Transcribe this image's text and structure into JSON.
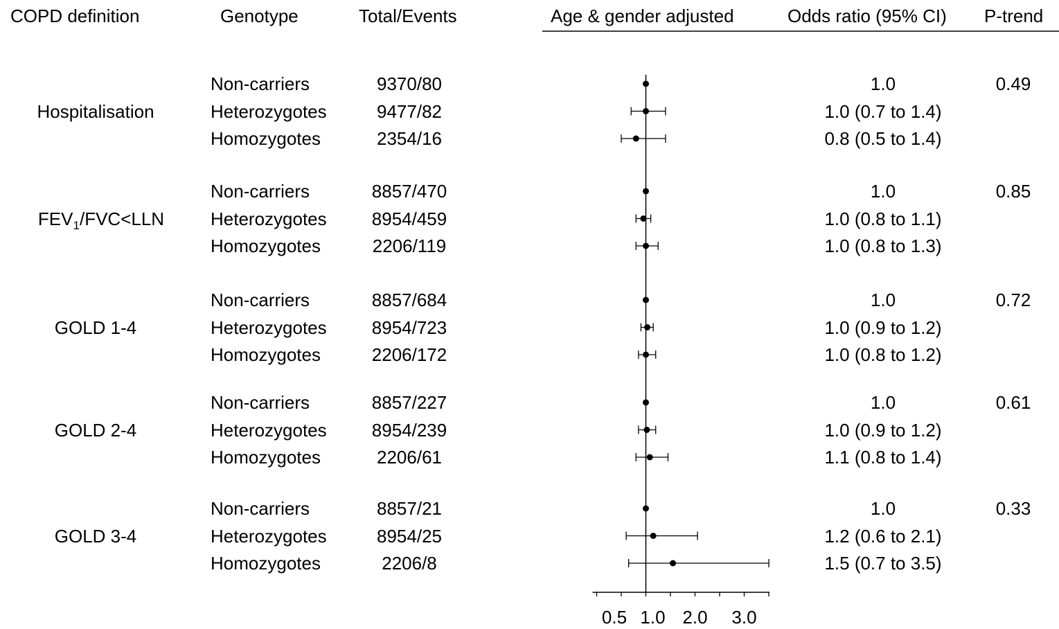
{
  "headers": {
    "definition": "COPD definition",
    "genotype": "Genotype",
    "total_events": "Total/Events",
    "adjusted": "Age & gender adjusted",
    "odds_ratio": "Odds ratio (95% CI)",
    "p_trend": "P-trend"
  },
  "groups": [
    {
      "label": "Hospitalisation",
      "p_trend": "0.49",
      "rows": [
        {
          "genotype": "Non-carriers",
          "total_events": "9370/80",
          "or_text": "1.0",
          "or": 1.0,
          "lo": 1.0,
          "hi": 1.0
        },
        {
          "genotype": "Heterozygotes",
          "total_events": "9477/82",
          "or_text": "1.0 (0.7 to 1.4)",
          "or": 1.0,
          "lo": 0.7,
          "hi": 1.4
        },
        {
          "genotype": "Homozygotes",
          "total_events": "2354/16",
          "or_text": "0.8 (0.5 to 1.4)",
          "or": 0.8,
          "lo": 0.5,
          "hi": 1.4
        }
      ]
    },
    {
      "label_main": "FEV",
      "label_sub": "1",
      "label_rest": "/FVC<LLN",
      "p_trend": "0.85",
      "rows": [
        {
          "genotype": "Non-carriers",
          "total_events": "8857/470",
          "or_text": "1.0",
          "or": 1.0,
          "lo": 1.0,
          "hi": 1.0
        },
        {
          "genotype": "Heterozygotes",
          "total_events": "8954/459",
          "or_text": "1.0 (0.8 to 1.1)",
          "or": 0.95,
          "lo": 0.8,
          "hi": 1.1
        },
        {
          "genotype": "Homozygotes",
          "total_events": "2206/119",
          "or_text": "1.0 (0.8 to 1.3)",
          "or": 1.0,
          "lo": 0.8,
          "hi": 1.25
        }
      ]
    },
    {
      "label": "GOLD 1-4",
      "p_trend": "0.72",
      "rows": [
        {
          "genotype": "Non-carriers",
          "total_events": "8857/684",
          "or_text": "1.0",
          "or": 1.0,
          "lo": 1.0,
          "hi": 1.0
        },
        {
          "genotype": "Heterozygotes",
          "total_events": "8954/723",
          "or_text": "1.0 (0.9 to 1.2)",
          "or": 1.03,
          "lo": 0.9,
          "hi": 1.15
        },
        {
          "genotype": "Homozygotes",
          "total_events": "2206/172",
          "or_text": "1.0 (0.8 to 1.2)",
          "or": 1.0,
          "lo": 0.85,
          "hi": 1.2
        }
      ]
    },
    {
      "label": "GOLD 2-4",
      "p_trend": "0.61",
      "rows": [
        {
          "genotype": "Non-carriers",
          "total_events": "8857/227",
          "or_text": "1.0",
          "or": 1.0,
          "lo": 1.0,
          "hi": 1.0
        },
        {
          "genotype": "Heterozygotes",
          "total_events": "8954/239",
          "or_text": "1.0 (0.9 to 1.2)",
          "or": 1.02,
          "lo": 0.85,
          "hi": 1.2
        },
        {
          "genotype": "Homozygotes",
          "total_events": "2206/61",
          "or_text": "1.1 (0.8 to 1.4)",
          "or": 1.08,
          "lo": 0.8,
          "hi": 1.45
        }
      ]
    },
    {
      "label": "GOLD 3-4",
      "p_trend": "0.33",
      "rows": [
        {
          "genotype": "Non-carriers",
          "total_events": "8857/21",
          "or_text": "1.0",
          "or": 1.0,
          "lo": 1.0,
          "hi": 1.0
        },
        {
          "genotype": "Heterozygotes",
          "total_events": "8954/25",
          "or_text": "1.2 (0.6 to 2.1)",
          "or": 1.15,
          "lo": 0.6,
          "hi": 2.05
        },
        {
          "genotype": "Homozygotes",
          "total_events": "2206/8",
          "or_text": "1.5 (0.7 to 3.5)",
          "or": 1.55,
          "lo": 0.65,
          "hi": 3.5
        }
      ]
    }
  ],
  "chart_data": {
    "type": "forest",
    "title": "",
    "xlabel": "",
    "xlim": [
      0.0,
      3.5
    ],
    "ticks": [
      0.0,
      0.5,
      1.0,
      1.5,
      2.0,
      2.5,
      3.0,
      3.5
    ],
    "tick_labels": [
      {
        "value": 0.5,
        "text": "0.5"
      },
      {
        "value": 1.0,
        "text": "1.0"
      },
      {
        "value": 2.0,
        "text": "2.0"
      },
      {
        "value": 3.0,
        "text": "3.0"
      }
    ],
    "reference_line": 1.0
  }
}
